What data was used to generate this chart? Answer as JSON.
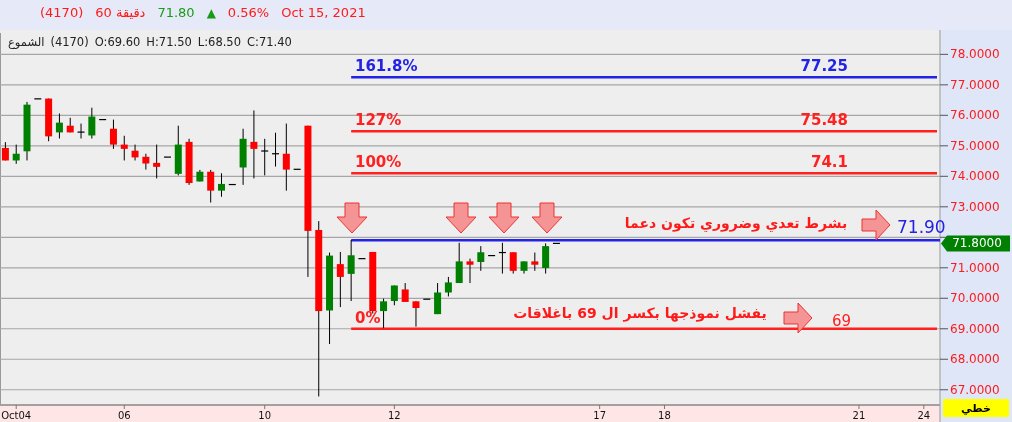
{
  "chart_data": {
    "type": "candlestick",
    "title": "(4170)",
    "subtitle": "الشموع (4170) O:69.60 H:71.50 L:68.50 C:71.40",
    "categories": [
      null,
      "Oct04",
      null,
      null,
      null,
      null,
      null,
      null,
      null,
      null,
      null,
      "06",
      null,
      null,
      null,
      null,
      null,
      null,
      null,
      null,
      null,
      null,
      null,
      null,
      "10",
      null,
      null,
      null,
      null,
      null,
      null,
      null,
      null,
      null,
      null,
      null,
      "12",
      null,
      null,
      null,
      null,
      null,
      null,
      null,
      null,
      null,
      null,
      null,
      null,
      null,
      null,
      null,
      null,
      null,
      null,
      "17",
      null,
      null,
      null,
      null,
      null,
      "18",
      null,
      null,
      null,
      null,
      null,
      null,
      null,
      null,
      null,
      null,
      null,
      null,
      null,
      null,
      null,
      null,
      null,
      "21",
      null,
      null,
      null,
      null,
      null,
      "24",
      null
    ],
    "ohlc": [
      [
        74.93,
        75.12,
        74.52,
        74.52
      ],
      [
        74.52,
        75.04,
        74.41,
        74.74
      ],
      [
        74.82,
        76.44,
        74.52,
        76.35
      ],
      [
        76.54,
        76.54,
        76.54,
        76.54
      ],
      [
        76.55,
        76.55,
        75.15,
        75.31
      ],
      [
        75.44,
        76.06,
        75.24,
        75.76
      ],
      [
        75.66,
        75.92,
        75.44,
        75.44
      ],
      [
        75.45,
        75.73,
        75.24,
        75.45
      ],
      [
        75.34,
        76.25,
        75.24,
        75.96
      ],
      [
        75.86,
        75.86,
        75.86,
        75.86
      ],
      [
        75.56,
        75.86,
        74.9,
        75.04
      ],
      [
        75.04,
        75.33,
        74.52,
        74.9
      ],
      [
        74.84,
        75.04,
        74.52,
        74.62
      ],
      [
        74.64,
        74.74,
        74.22,
        74.42
      ],
      [
        74.44,
        75.04,
        73.93,
        74.31
      ],
      [
        74.63,
        74.63,
        74.63,
        74.63
      ],
      [
        74.08,
        75.66,
        74.03,
        75.04
      ],
      [
        75.13,
        75.23,
        73.72,
        73.78
      ],
      [
        73.83,
        74.21,
        73.83,
        74.15
      ],
      [
        74.15,
        74.21,
        73.14,
        73.53
      ],
      [
        73.53,
        74.1,
        73.33,
        73.75
      ],
      [
        73.73,
        73.73,
        73.73,
        73.73
      ],
      [
        74.29,
        75.56,
        73.72,
        75.23
      ],
      [
        75.13,
        76.16,
        73.93,
        74.9
      ],
      [
        74.83,
        75.23,
        74.03,
        74.83
      ],
      [
        74.74,
        75.43,
        74.32,
        74.74
      ],
      [
        74.74,
        75.73,
        73.53,
        74.22
      ],
      [
        74.23,
        74.23,
        74.23,
        74.23
      ],
      [
        75.66,
        75.66,
        70.7,
        72.21
      ],
      [
        72.24,
        72.53,
        66.78,
        69.58
      ],
      [
        69.6,
        71.5,
        68.5,
        71.4
      ],
      [
        71.12,
        71.52,
        69.71,
        70.7
      ],
      [
        70.8,
        71.91,
        69.91,
        71.41
      ],
      [
        71.3,
        71.3,
        71.3,
        71.3
      ],
      [
        71.52,
        71.52,
        69.5,
        69.58
      ],
      [
        69.58,
        69.99,
        69.02,
        69.9
      ],
      [
        69.91,
        70.42,
        69.77,
        70.42
      ],
      [
        70.29,
        70.5,
        69.88,
        69.88
      ],
      [
        69.9,
        69.9,
        69.07,
        69.68
      ],
      [
        69.97,
        69.97,
        69.97,
        69.97
      ],
      [
        69.48,
        70.5,
        69.48,
        70.19
      ],
      [
        70.19,
        70.7,
        70.06,
        70.52
      ],
      [
        70.5,
        71.82,
        70.5,
        71.21
      ],
      [
        71.21,
        71.3,
        70.5,
        71.1
      ],
      [
        71.19,
        71.71,
        70.9,
        71.51
      ],
      [
        71.4,
        71.4,
        71.4,
        71.4
      ],
      [
        71.5,
        71.82,
        70.81,
        71.5
      ],
      [
        71.51,
        71.51,
        70.81,
        70.9
      ],
      [
        70.9,
        71.21,
        70.81,
        71.21
      ],
      [
        71.21,
        71.5,
        70.9,
        71.1
      ],
      [
        70.99,
        71.8,
        70.81,
        71.71
      ],
      [
        71.8,
        71.8,
        71.8,
        71.8
      ],
      null,
      null,
      null,
      null,
      null,
      null,
      null,
      null,
      null,
      null,
      null,
      null,
      null,
      null,
      null,
      null,
      null,
      null,
      null,
      null,
      null,
      null,
      null,
      null,
      null,
      null,
      null,
      null,
      null,
      null,
      null,
      null,
      null,
      null,
      null
    ],
    "ylim": [
      66.5,
      78.7
    ],
    "yticks": [
      {
        "value": 67,
        "label": "67.0000"
      },
      {
        "value": 68,
        "label": "68.0000"
      },
      {
        "value": 69,
        "label": "69.0000"
      },
      {
        "value": 70,
        "label": "70.0000"
      },
      {
        "value": 71,
        "label": "71.0000"
      },
      {
        "value": 72,
        "label": null
      },
      {
        "value": 73,
        "label": "73.0000"
      },
      {
        "value": 74,
        "label": "74.0000"
      },
      {
        "value": 75,
        "label": "75.0000"
      },
      {
        "value": 76,
        "label": "76.0000"
      },
      {
        "value": 77,
        "label": "77.0000"
      },
      {
        "value": 78,
        "label": "78.0000"
      }
    ],
    "grid": "y",
    "ref_lines": [
      {
        "axis": "y",
        "value": 77.25,
        "label": "77.25",
        "color": "#2323e6"
      },
      {
        "axis": "y",
        "value": 75.48,
        "label": "75.48",
        "color": "#ff2020"
      },
      {
        "axis": "y",
        "value": 74.1,
        "label": "74.1",
        "color": "#ff2020"
      },
      {
        "axis": "y",
        "value": 71.9,
        "label": "71.90",
        "color": "#2323e6"
      },
      {
        "axis": "y",
        "value": 69,
        "label": "69",
        "color": "#ff2020"
      }
    ],
    "annotations": [
      {
        "text": "161.8%",
        "y": 77.25
      },
      {
        "text": "127%",
        "y": 75.48
      },
      {
        "text": "100%",
        "y": 74.1
      },
      {
        "text": "0%",
        "y": 69
      },
      {
        "text": "بشرط تعدي وضروري تكون دعما",
        "y": 71.9
      },
      {
        "text": "يفشل نموذجها بكسر ال 69 باغلاقات",
        "y": 69
      },
      "71.8000",
      "60 دقيقة",
      "71.80",
      "▲",
      "0.56%",
      "Oct 15, 2021",
      "خطي"
    ]
  }
}
